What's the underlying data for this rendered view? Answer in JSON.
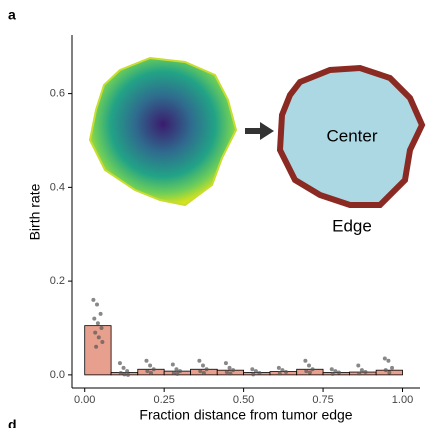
{
  "panel_label": "a",
  "next_panel_label": "d",
  "chart_data": {
    "type": "histogram",
    "y_label": "Birth rate",
    "x_label": "Fraction distance from tumor edge",
    "inset_labels": [
      "Center",
      "Edge"
    ],
    "bins": [
      0.0,
      0.083,
      0.167,
      0.25,
      0.333,
      0.417,
      0.5,
      0.583,
      0.667,
      0.75,
      0.833,
      0.917,
      1.0
    ],
    "values": [
      0.105,
      0.005,
      0.012,
      0.008,
      0.012,
      0.01,
      0.005,
      0.007,
      0.012,
      0.005,
      0.006,
      0.01
    ],
    "points": [
      [
        0.16,
        0.15,
        0.13,
        0.12,
        0.11,
        0.1,
        0.09,
        0.08,
        0.07,
        0.06
      ],
      [
        0.025,
        0.015,
        0.008,
        0.004,
        0.001,
        0.0
      ],
      [
        0.03,
        0.02,
        0.012,
        0.008,
        0.004
      ],
      [
        0.022,
        0.012,
        0.008,
        0.004,
        0.002
      ],
      [
        0.03,
        0.02,
        0.012,
        0.008,
        0.004
      ],
      [
        0.025,
        0.015,
        0.01,
        0.006,
        0.003
      ],
      [
        0.012,
        0.008,
        0.004,
        0.001
      ],
      [
        0.015,
        0.01,
        0.006,
        0.003
      ],
      [
        0.03,
        0.02,
        0.012,
        0.008,
        0.005
      ],
      [
        0.012,
        0.008,
        0.005,
        0.002
      ],
      [
        0.02,
        0.01,
        0.006,
        0.003
      ],
      [
        0.035,
        0.03,
        0.015,
        0.01,
        0.005
      ]
    ],
    "color": "#e8a08e",
    "point_color": "#555555",
    "xlim": [
      -0.04,
      1.055
    ],
    "ylim": [
      -0.028,
      0.725
    ],
    "xticks": [
      {
        "value": 0,
        "label": "0.00"
      },
      0.25,
      {
        "value": 0.5,
        "label": "0.50"
      },
      0.75,
      {
        "value": 1,
        "label": "1.00"
      }
    ],
    "yticks": [
      {
        "value": 0,
        "label": "0.0"
      },
      0.2,
      0.4,
      0.6
    ]
  }
}
